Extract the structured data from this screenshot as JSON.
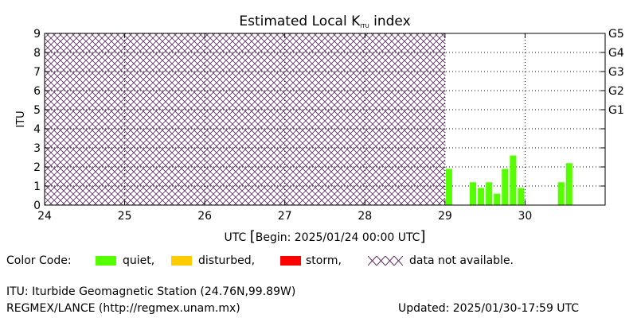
{
  "chart_data": {
    "type": "bar",
    "title": "Estimated Local K",
    "title_sub": "ITU",
    "title_suffix": " index",
    "ylabel": "ITU",
    "xlabel_prefix": "UTC ",
    "xlabel_bracket_open": "[",
    "xlabel_body": "Begin: 2025/01/24 00:00 UTC",
    "xlabel_bracket_close": "]",
    "x_domain": [
      "2025/01/24 00:00",
      "2025/01/31 00:00"
    ],
    "xlim_days": [
      24,
      31
    ],
    "ylim": [
      0,
      9
    ],
    "x_ticks": [
      "24",
      "25",
      "26",
      "27",
      "28",
      "29",
      "30"
    ],
    "y_ticks": [
      "0",
      "1",
      "2",
      "3",
      "4",
      "5",
      "6",
      "7",
      "8",
      "9"
    ],
    "right_ticks": [
      {
        "label": "G1",
        "value": 5
      },
      {
        "label": "G2",
        "value": 6
      },
      {
        "label": "G3",
        "value": 7
      },
      {
        "label": "G4",
        "value": 8
      },
      {
        "label": "G5",
        "value": 9
      }
    ],
    "no_data_until_day": 29,
    "bar_width_days": 0.1,
    "bars": [
      {
        "day": 29.0,
        "value": 1.9
      },
      {
        "day": 29.1,
        "value": 0.0
      },
      {
        "day": 29.2,
        "value": 0.0
      },
      {
        "day": 29.3,
        "value": 1.2
      },
      {
        "day": 29.4,
        "value": 0.9
      },
      {
        "day": 29.5,
        "value": 1.2
      },
      {
        "day": 29.6,
        "value": 0.6
      },
      {
        "day": 29.7,
        "value": 1.9
      },
      {
        "day": 29.8,
        "value": 2.6
      },
      {
        "day": 29.9,
        "value": 0.9
      },
      {
        "day": 30.0,
        "value": 0.0
      },
      {
        "day": 30.1,
        "value": 0.0
      },
      {
        "day": 30.2,
        "value": 0.0
      },
      {
        "day": 30.3,
        "value": 0.0
      },
      {
        "day": 30.4,
        "value": 1.2
      },
      {
        "day": 30.5,
        "value": 2.2
      }
    ],
    "grid": true,
    "colors": {
      "quiet": "#55ff00",
      "disturbed": "#ffcc00",
      "storm": "#ff0000",
      "hatch": "#5a2b5a",
      "grid": "#000000"
    }
  },
  "legend": {
    "label": "Color Code:",
    "quiet": "quiet,",
    "disturbed": "disturbed,",
    "storm": "storm,",
    "na_symbol": "XXXX",
    "na": "data not available."
  },
  "footer": {
    "station": "ITU: Iturbide Geomagnetic Station (24.76N,99.89W)",
    "source": "REGMEX/LANCE (http://regmex.unam.mx)",
    "updated": "Updated: 2025/01/30-17:59 UTC"
  }
}
